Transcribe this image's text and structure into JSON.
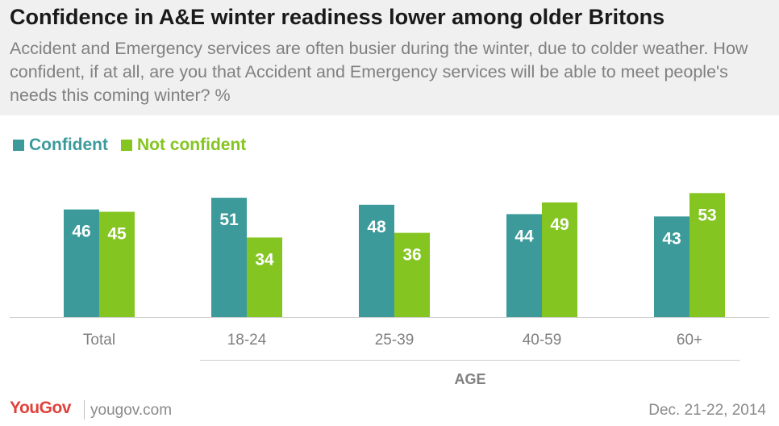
{
  "header": {
    "title": "Confidence in A&E winter readiness lower among older Britons",
    "subtitle": "Accident and Emergency services are often busier during the winter, due to colder weather. How confident, if at all, are you that Accident and Emergency services will be able to meet people's needs this coming winter? %"
  },
  "legend": {
    "confident_label": "Confident",
    "not_confident_label": "Not confident"
  },
  "chart_data": {
    "type": "bar",
    "title": "Confidence in A&E winter readiness lower among older Britons",
    "categories": [
      "Total",
      "18-24",
      "25-39",
      "40-59",
      "60+"
    ],
    "series": [
      {
        "name": "Confident",
        "values": [
          46,
          51,
          48,
          44,
          43
        ],
        "color": "#3d9a9b"
      },
      {
        "name": "Not confident",
        "values": [
          45,
          34,
          36,
          49,
          53
        ],
        "color": "#84c521"
      }
    ],
    "xlabel": "AGE",
    "ylabel": "",
    "ylim": [
      0,
      60
    ],
    "grid": false,
    "legend_position": "top-left"
  },
  "footer": {
    "logo": "YouGov",
    "site": "yougov.com",
    "date": "Dec. 21-22, 2014"
  }
}
